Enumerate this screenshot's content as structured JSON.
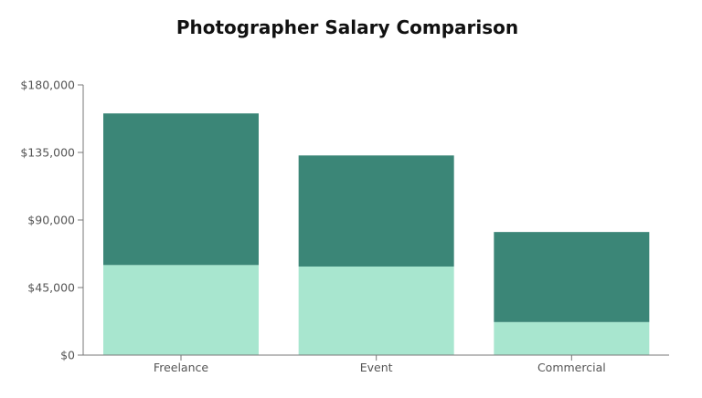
{
  "chart_data": {
    "type": "bar",
    "stacked": true,
    "title": "Photographer Salary Comparison",
    "xlabel": "",
    "ylabel": "",
    "categories": [
      "Freelance",
      "Event",
      "Commercial"
    ],
    "series": [
      {
        "values": [
          60000,
          59000,
          22000
        ]
      },
      {
        "values": [
          101000,
          74000,
          60000
        ]
      }
    ],
    "ylim": [
      0,
      180000
    ],
    "yticks": [
      0,
      45000,
      90000,
      135000,
      180000
    ],
    "ytick_labels": [
      "$0",
      "$45,000",
      "$90,000",
      "$135,000",
      "$180,000"
    ],
    "colors": [
      "#a8e6cf",
      "#3b8677"
    ],
    "grid": false,
    "legend": "none"
  }
}
